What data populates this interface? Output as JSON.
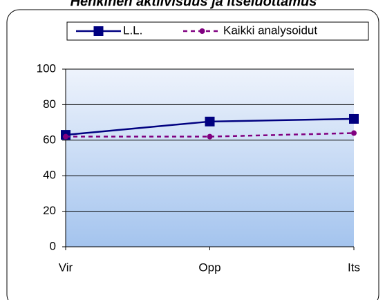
{
  "chart_data": {
    "type": "line",
    "title": "Henkinen aktiivisuus ja itseluottamus",
    "categories": [
      "Vir",
      "Opp",
      "Its"
    ],
    "series": [
      {
        "name": "L.L.",
        "color": "#000080",
        "values": [
          63,
          70.5,
          72
        ]
      },
      {
        "name": "Kaikki analysoidut",
        "color": "#800080",
        "values": [
          62,
          62,
          64
        ]
      }
    ],
    "ylim": [
      0,
      100
    ],
    "yticks": [
      0,
      20,
      40,
      60,
      80,
      100
    ],
    "grid": true,
    "legend": "top"
  }
}
